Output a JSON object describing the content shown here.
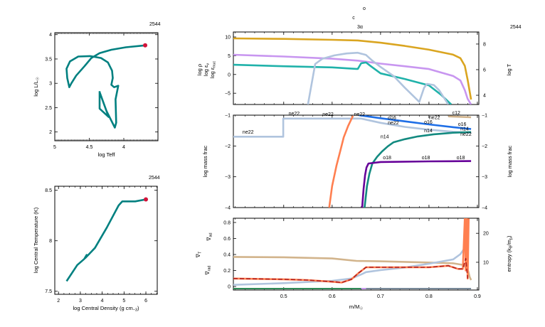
{
  "chart_data": [
    {
      "id": "hr",
      "type": "line",
      "title": "2544",
      "xlabel": "log Teff",
      "ylabel": [
        "log L/L",
        "☉"
      ],
      "xlim": [
        5.0,
        3.505
      ],
      "ylim": [
        1.82,
        4.04
      ],
      "xticks": [
        {
          "v": 5,
          "label": "5"
        },
        {
          "v": 4.5,
          "label": "4.5"
        },
        {
          "v": 4,
          "label": "4"
        }
      ],
      "yticks": [
        {
          "v": 4,
          "label": "4"
        },
        {
          "v": 3.5,
          "label": "3.5"
        },
        {
          "v": 3,
          "label": "3"
        },
        {
          "v": 2.5,
          "label": "2.5"
        },
        {
          "v": 2,
          "label": "2"
        }
      ],
      "series": [
        {
          "color": "#008080",
          "x": [
            4.35,
            4.35,
            4.22,
            4.35,
            4.25,
            4.13,
            4.11,
            4.12,
            4.08,
            4.14,
            4.18,
            4.16,
            4.17,
            4.23,
            4.33,
            4.49,
            4.66,
            4.78,
            4.83,
            4.82,
            4.79,
            4.76,
            4.69,
            4.57,
            4.47,
            4.35,
            4.18,
            3.97,
            3.69
          ],
          "y": [
            2.84,
            2.48,
            2.31,
            2.82,
            2.43,
            2.09,
            2.19,
            2.67,
            2.95,
            2.92,
            2.97,
            3.11,
            3.26,
            3.43,
            3.52,
            3.56,
            3.55,
            3.45,
            3.3,
            3.11,
            2.92,
            3.0,
            3.16,
            3.35,
            3.52,
            3.62,
            3.69,
            3.74,
            3.78
          ]
        }
      ],
      "current_point": {
        "x": 3.69,
        "y": 3.78,
        "color": "#d2143a"
      }
    },
    {
      "id": "tc_rhoc",
      "type": "line",
      "title": "2544",
      "xlabel": [
        "log Central Density (g cm",
        "−3",
        ")"
      ],
      "ylabel": "log Central Temperature (K)",
      "xlim": [
        1.83,
        6.52
      ],
      "ylim": [
        7.47,
        8.54
      ],
      "xticks": [
        {
          "v": 2,
          "label": "2"
        },
        {
          "v": 3,
          "label": "3"
        },
        {
          "v": 4,
          "label": "4"
        },
        {
          "v": 5,
          "label": "5"
        },
        {
          "v": 6,
          "label": "6"
        }
      ],
      "yticks": [
        {
          "v": 8.5,
          "label": "8.5"
        },
        {
          "v": 8,
          "label": "8"
        },
        {
          "v": 7.5,
          "label": "7.5"
        }
      ],
      "series": [
        {
          "color": "#008080",
          "x": [
            2.37,
            2.86,
            3.18,
            3.29,
            3.23,
            3.67,
            4.21,
            4.75,
            4.92,
            5.51,
            6.0
          ],
          "y": [
            7.6,
            7.76,
            7.82,
            7.86,
            7.83,
            7.93,
            8.13,
            8.35,
            8.39,
            8.39,
            8.41
          ]
        }
      ],
      "current_point": {
        "x": 6.0,
        "y": 8.41,
        "color": "#d2143a"
      }
    },
    {
      "id": "profile_top",
      "type": "line",
      "title_lines": [
        "o",
        "c",
        "3α"
      ],
      "model_number": "2544",
      "xlim": [
        0.396,
        0.903
      ],
      "ylim": [
        -8.0,
        11.33
      ],
      "y2lim": [
        3.28,
        8.94
      ],
      "yticks": [
        {
          "v": 10,
          "label": "10"
        },
        {
          "v": 5,
          "label": "5"
        },
        {
          "v": 0,
          "label": "0"
        },
        {
          "v": -5,
          "label": "−5"
        }
      ],
      "y2ticks": [
        {
          "v": 8,
          "label": "8"
        },
        {
          "v": 6,
          "label": "6"
        },
        {
          "v": 4,
          "label": "4"
        }
      ],
      "ylabels": [
        {
          "text": "log ρ",
          "sub": "",
          "color": "#c896f0"
        },
        {
          "text": "log ε",
          "sub": "ν",
          "color": "#20b2aa"
        },
        {
          "text": "log ε",
          "sub": "nuc",
          "color": "#b0c4de"
        }
      ],
      "y2label": {
        "text": "log T",
        "color": "#daa520"
      },
      "series": [
        {
          "name": "log T",
          "axis": "right",
          "color": "#daa520",
          "x": [
            0.396,
            0.5,
            0.6,
            0.653,
            0.7,
            0.75,
            0.8,
            0.85,
            0.865,
            0.874,
            0.88,
            0.887
          ],
          "y": [
            8.44,
            8.4,
            8.33,
            8.28,
            8.1,
            7.85,
            7.56,
            7.17,
            6.9,
            6.3,
            5.2,
            3.67
          ]
        },
        {
          "name": "log ρ",
          "axis": "left",
          "color": "#c896f0",
          "x": [
            0.396,
            0.5,
            0.6,
            0.653,
            0.7,
            0.75,
            0.8,
            0.85,
            0.865,
            0.874,
            0.88,
            0.887
          ],
          "y": [
            5.26,
            4.8,
            4.2,
            3.7,
            2.9,
            2.2,
            1.46,
            -0.4,
            -1.6,
            -4.2,
            -6.5,
            -8
          ]
        },
        {
          "name": "log ε_ν",
          "axis": "left",
          "color": "#20b2aa",
          "x": [
            0.396,
            0.5,
            0.6,
            0.65,
            0.653,
            0.66,
            0.67,
            0.68,
            0.7,
            0.75,
            0.8,
            0.825,
            0.846
          ],
          "y": [
            2.6,
            2.2,
            1.9,
            1.5,
            1.5,
            3.0,
            3.2,
            2.2,
            0.3,
            -1.2,
            -2.9,
            -5.4,
            -8
          ]
        },
        {
          "name": "log ε_nuc",
          "axis": "left",
          "color": "#b0c4de",
          "x": [
            0.55,
            0.565,
            0.58,
            0.605,
            0.63,
            0.653,
            0.67,
            0.683,
            0.7,
            0.727,
            0.75,
            0.78,
            0.79,
            0.796,
            0.81,
            0.821,
            0.84
          ],
          "y": [
            -8,
            2.8,
            4.2,
            5.1,
            5.6,
            5.8,
            5.2,
            3.7,
            2.0,
            -0.4,
            -3.5,
            -7.3,
            -3.5,
            -2.5,
            -2.8,
            -4.2,
            -8
          ]
        }
      ]
    },
    {
      "id": "profile_abund",
      "type": "line",
      "xlim": [
        0.396,
        0.903
      ],
      "ylim": [
        -4,
        -1
      ],
      "ylabel": "log mass frac",
      "y2label": "log mass frac",
      "yticks": [
        {
          "v": -1,
          "label": "−1"
        },
        {
          "v": -2,
          "label": "−2"
        },
        {
          "v": -3,
          "label": "−3"
        },
        {
          "v": -4,
          "label": "−4"
        }
      ],
      "series": [
        {
          "name": "ne22",
          "color": "#b0c4de",
          "x": [
            0.396,
            0.499,
            0.499,
            0.6,
            0.66,
            0.7,
            0.75,
            0.8,
            0.85,
            0.887
          ],
          "y": [
            -1.7,
            -1.7,
            -1.11,
            -1.11,
            -1.11,
            -1.25,
            -1.38,
            -1.47,
            -1.54,
            -1.57
          ]
        },
        {
          "name": "c12",
          "color": "#d2b48c",
          "x": [
            0.84,
            0.887
          ],
          "y": [
            -1.04,
            -1.07
          ]
        },
        {
          "name": "o16",
          "color": "#1e6ee6",
          "x": [
            0.655,
            0.7,
            0.75,
            0.8,
            0.85,
            0.887
          ],
          "y": [
            -1.0,
            -1.1,
            -1.2,
            -1.3,
            -1.39,
            -1.45
          ]
        },
        {
          "name": "n14",
          "color": "#138a80",
          "x": [
            0.667,
            0.672,
            0.677,
            0.683,
            0.693,
            0.703,
            0.715,
            0.727,
            0.75,
            0.777,
            0.81,
            0.85,
            0.887
          ],
          "y": [
            -4,
            -3.3,
            -2.9,
            -2.57,
            -2.35,
            -2.18,
            -2.01,
            -1.88,
            -1.78,
            -1.69,
            -1.62,
            -1.57,
            -1.55
          ]
        },
        {
          "name": "o18",
          "color": "#660099",
          "x": [
            0.662,
            0.665,
            0.668,
            0.671,
            0.675,
            0.7,
            0.8,
            0.887
          ],
          "y": [
            -4,
            -3.4,
            -2.95,
            -2.7,
            -2.57,
            -2.52,
            -2.5,
            -2.49
          ]
        },
        {
          "name": "",
          "color": "#ff7f50",
          "x": [
            0.594,
            0.6,
            0.609,
            0.617,
            0.624,
            0.633,
            0.643
          ],
          "y": [
            -4,
            -3.3,
            -2.64,
            -2.15,
            -1.72,
            -1.35,
            -1.02
          ]
        }
      ],
      "labels": [
        {
          "text": "ne22",
          "color": "#b0c4de",
          "x": 0.415,
          "y": -1.6
        },
        {
          "text": "ne22",
          "color": "#b0c4de",
          "x": 0.51,
          "y": -1.0
        },
        {
          "text": "ne22",
          "color": "#b0c4de",
          "x": 0.58,
          "y": -1.02
        },
        {
          "text": "ne22",
          "color": "#b0c4de",
          "x": 0.645,
          "y": -1.02
        },
        {
          "text": "ne22",
          "color": "#b0c4de",
          "x": 0.715,
          "y": -1.23
        },
        {
          "text": "ne22",
          "color": "#b0c4de",
          "x": 0.8,
          "y": -1.36
        },
        {
          "text": "ne22",
          "color": "#b0c4de",
          "x": 0.865,
          "y": -1.48
        },
        {
          "text": "o16",
          "color": "#1e6ee6",
          "x": 0.715,
          "y": -1.14
        },
        {
          "text": "o16",
          "color": "#1e6ee6",
          "x": 0.79,
          "y": -1.28
        },
        {
          "text": "o16",
          "color": "#1e6ee6",
          "x": 0.86,
          "y": -1.37
        },
        {
          "text": "n14",
          "color": "#138a80",
          "x": 0.7,
          "y": -1.75
        },
        {
          "text": "n14",
          "color": "#138a80",
          "x": 0.79,
          "y": -1.55
        },
        {
          "text": "n14",
          "color": "#138a80",
          "x": 0.865,
          "y": -1.5
        },
        {
          "text": "o18",
          "color": "#660099",
          "x": 0.705,
          "y": -2.43
        },
        {
          "text": "o18",
          "color": "#660099",
          "x": 0.785,
          "y": -2.43
        },
        {
          "text": "o18",
          "color": "#660099",
          "x": 0.857,
          "y": -2.43
        },
        {
          "text": "c12",
          "color": "#d2b48c",
          "x": 0.848,
          "y": -0.98
        }
      ]
    },
    {
      "id": "profile_grad",
      "type": "line",
      "xlabel": [
        "m/M",
        "☉"
      ],
      "xlim": [
        0.396,
        0.903
      ],
      "ylim": [
        -0.044,
        0.853
      ],
      "y2lim": [
        0.42,
        25.2
      ],
      "xticks": [
        {
          "v": 0.5,
          "label": "0.5"
        },
        {
          "v": 0.6,
          "label": "0.6"
        },
        {
          "v": 0.7,
          "label": "0.7"
        },
        {
          "v": 0.8,
          "label": "0.8"
        },
        {
          "v": 0.9,
          "label": "0.9"
        }
      ],
      "yticks": [
        {
          "v": 0.8,
          "label": "0.8"
        },
        {
          "v": 0.6,
          "label": "0.6"
        },
        {
          "v": 0.4,
          "label": "0.4"
        },
        {
          "v": 0.2,
          "label": "0.2"
        },
        {
          "v": 0,
          "label": "0"
        }
      ],
      "y2ticks": [
        {
          "v": 20,
          "label": "20"
        },
        {
          "v": 10,
          "label": "10"
        }
      ],
      "ylabels": [
        {
          "text": "∇",
          "sub": "ad",
          "color": "#d2b48c"
        },
        {
          "text": "∇",
          "sub": "T",
          "color": "#b22222"
        },
        {
          "text": "∇",
          "sub": "rad",
          "color": "#ff7f50"
        }
      ],
      "y2label": {
        "text": "entropy (k",
        "sub": "B",
        "text2": "/m",
        "sub2": "p",
        "text3": ")"
      },
      "series": [
        {
          "name": "∇_ad",
          "axis": "left",
          "color": "#d2b48c",
          "x": [
            0.396,
            0.5,
            0.6,
            0.65,
            0.7,
            0.8,
            0.85,
            0.87,
            0.88,
            0.884,
            0.887
          ],
          "y": [
            0.37,
            0.365,
            0.35,
            0.32,
            0.315,
            0.3,
            0.29,
            0.27,
            0.22,
            0.12,
            0.08
          ]
        },
        {
          "name": "entropy",
          "axis": "right",
          "color": "#b0c4de",
          "x": [
            0.396,
            0.5,
            0.6,
            0.64,
            0.66,
            0.67,
            0.7,
            0.75,
            0.8,
            0.85,
            0.865,
            0.872,
            0.876
          ],
          "y": [
            2.2,
            2.8,
            3.6,
            4.4,
            5.8,
            6.6,
            7.3,
            8.2,
            9.5,
            11,
            12.8,
            14.5,
            19.5
          ]
        },
        {
          "name": "∇_rad",
          "axis": "left",
          "color": "#ff7f50",
          "x": [
            0.396,
            0.5,
            0.55,
            0.6,
            0.62,
            0.64,
            0.655,
            0.67,
            0.7,
            0.75,
            0.8,
            0.84,
            0.86,
            0.87,
            0.874,
            0.876,
            0.878,
            0.88,
            0.882
          ],
          "y": [
            0.1,
            0.09,
            0.08,
            0.06,
            0.05,
            0.09,
            0.17,
            0.24,
            0.24,
            0.24,
            0.24,
            0.26,
            0.22,
            0.22,
            0.85,
            0.2,
            0.85,
            0.1,
            0.85
          ]
        },
        {
          "name": "∇_T",
          "axis": "left",
          "color": "#b22222",
          "dash": true,
          "x": [
            0.396,
            0.5,
            0.55,
            0.6,
            0.62,
            0.64,
            0.655,
            0.67,
            0.7,
            0.75,
            0.8,
            0.84,
            0.86,
            0.87,
            0.876,
            0.88
          ],
          "y": [
            0.1,
            0.09,
            0.08,
            0.06,
            0.05,
            0.09,
            0.17,
            0.24,
            0.24,
            0.24,
            0.24,
            0.26,
            0.22,
            0.22,
            0.35,
            0.1
          ]
        }
      ],
      "mix_strip": [
        {
          "color": "#2e8b57",
          "x": [
            0.396,
            0.66
          ]
        },
        {
          "color": "#c896f0",
          "x": [
            0.66,
            0.67
          ]
        },
        {
          "color": "#778899",
          "x": [
            0.67,
            0.887
          ]
        }
      ]
    }
  ]
}
